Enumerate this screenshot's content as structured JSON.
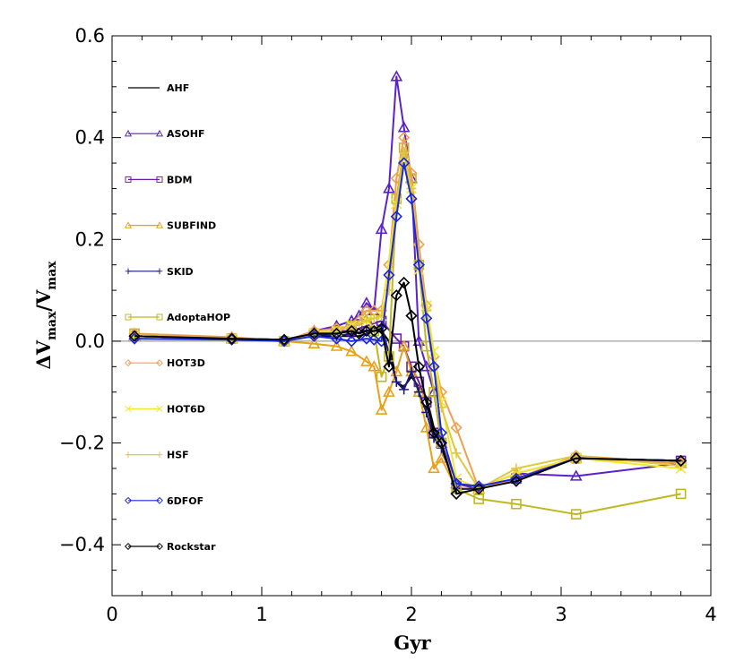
{
  "chart_data": {
    "type": "line",
    "xlabel": "Gyr",
    "ylabel": {
      "delta": "ΔV",
      "sub1": "max",
      "slash": "/V",
      "sub2": "max"
    },
    "xlim": [
      0,
      4
    ],
    "ylim": [
      -0.5,
      0.6
    ],
    "xticks": [
      0,
      1,
      2,
      3,
      4
    ],
    "yticks": [
      -0.4,
      -0.2,
      0.0,
      0.2,
      0.4,
      0.6
    ],
    "xtick_labels": [
      "0",
      "1",
      "2",
      "3",
      "4"
    ],
    "ytick_labels": [
      "−0.4",
      "−0.2",
      "0.0",
      "0.2",
      "0.4",
      "0.6"
    ],
    "reference_line_y": 0,
    "grid": false,
    "legend_position": "left",
    "series": [
      {
        "name": "AHF",
        "color": "#000000",
        "marker": "none",
        "x": [
          0.15,
          0.8,
          1.15,
          1.35,
          1.5,
          1.6,
          1.65,
          1.7,
          1.75,
          1.8,
          1.85,
          1.9,
          1.95,
          2.0,
          2.05,
          2.1,
          2.15,
          2.2,
          2.3,
          2.45,
          2.7,
          3.1,
          3.8
        ],
        "y": [
          0.01,
          0.005,
          0.003,
          0.01,
          0.01,
          0.01,
          0.01,
          0.015,
          0.02,
          0.02,
          0.0,
          -0.08,
          -0.09,
          -0.07,
          -0.09,
          -0.11,
          -0.17,
          -0.2,
          -0.29,
          -0.29,
          -0.27,
          -0.23,
          -0.235
        ]
      },
      {
        "name": "ASOHF",
        "color": "#5a22c8",
        "marker": "triangle",
        "x": [
          0.15,
          0.8,
          1.15,
          1.35,
          1.5,
          1.6,
          1.65,
          1.7,
          1.75,
          1.8,
          1.85,
          1.9,
          1.95,
          2.0,
          2.05,
          2.1,
          2.15,
          2.2,
          2.3,
          2.45,
          2.7,
          3.1,
          3.8
        ],
        "y": [
          0.01,
          0.005,
          0.0,
          0.02,
          0.03,
          0.04,
          0.05,
          0.075,
          0.06,
          0.22,
          0.3,
          0.52,
          0.42,
          0.32,
          0.0,
          -0.05,
          -0.1,
          -0.2,
          -0.28,
          -0.29,
          -0.26,
          -0.265,
          -0.24
        ]
      },
      {
        "name": "BDM",
        "color": "#6a1fa8",
        "marker": "square",
        "x": [
          0.15,
          0.8,
          1.15,
          1.35,
          1.5,
          1.6,
          1.7,
          1.8,
          1.9,
          1.95,
          2.0,
          2.05,
          2.1,
          2.15,
          2.2,
          2.3,
          2.45,
          2.7,
          3.1,
          3.8
        ],
        "y": [
          0.01,
          0.005,
          0.0,
          0.015,
          0.02,
          0.02,
          0.03,
          0.04,
          0.005,
          -0.01,
          -0.05,
          -0.08,
          -0.12,
          -0.18,
          -0.2,
          -0.28,
          -0.29,
          -0.27,
          -0.23,
          -0.235
        ]
      },
      {
        "name": "SUBFIND",
        "color": "#e8a018",
        "marker": "triangle",
        "x": [
          0.15,
          0.8,
          1.15,
          1.35,
          1.5,
          1.6,
          1.7,
          1.75,
          1.8,
          1.85,
          1.9,
          1.95,
          2.0,
          2.05,
          2.1,
          2.15,
          2.2,
          2.3,
          2.45,
          2.7,
          3.1,
          3.8
        ],
        "y": [
          0.01,
          0.005,
          0.0,
          -0.005,
          -0.01,
          -0.02,
          -0.04,
          -0.05,
          -0.135,
          -0.1,
          -0.06,
          -0.01,
          -0.06,
          -0.1,
          -0.17,
          -0.25,
          -0.23,
          -0.29,
          -0.29,
          -0.26,
          -0.23,
          -0.24
        ]
      },
      {
        "name": "SKID",
        "color": "#1a1a7a",
        "marker": "plus",
        "x": [
          0.15,
          0.8,
          1.15,
          1.35,
          1.5,
          1.6,
          1.7,
          1.8,
          1.9,
          1.95,
          2.0,
          2.05,
          2.1,
          2.15,
          2.2,
          2.3,
          2.45,
          2.7,
          3.1,
          3.8
        ],
        "y": [
          0.01,
          0.005,
          0.003,
          0.015,
          0.01,
          0.015,
          0.02,
          0.03,
          -0.08,
          -0.095,
          -0.06,
          -0.1,
          -0.14,
          -0.19,
          -0.21,
          -0.29,
          -0.29,
          -0.27,
          -0.23,
          -0.235
        ]
      },
      {
        "name": "AdoptaHOP",
        "color": "#c0b820",
        "marker": "square",
        "x": [
          0.15,
          0.8,
          1.15,
          1.35,
          1.5,
          1.6,
          1.7,
          1.75,
          1.8,
          1.85,
          1.9,
          1.95,
          2.0,
          2.05,
          2.1,
          2.15,
          2.2,
          2.3,
          2.45,
          2.7,
          3.1,
          3.8
        ],
        "y": [
          0.015,
          0.005,
          0.0,
          0.015,
          0.02,
          0.03,
          0.05,
          0.02,
          -0.07,
          -0.03,
          0.28,
          0.38,
          0.32,
          0.15,
          -0.01,
          -0.1,
          -0.2,
          -0.29,
          -0.31,
          -0.32,
          -0.34,
          -0.3
        ]
      },
      {
        "name": "HOT3D",
        "color": "#f0a050",
        "marker": "diamond",
        "x": [
          0.15,
          0.8,
          1.15,
          1.35,
          1.5,
          1.6,
          1.65,
          1.7,
          1.75,
          1.8,
          1.85,
          1.9,
          1.95,
          2.0,
          2.05,
          2.1,
          2.15,
          2.2,
          2.3,
          2.45,
          2.7,
          3.1,
          3.8
        ],
        "y": [
          0.015,
          0.008,
          0.0,
          0.02,
          0.025,
          0.03,
          0.04,
          0.06,
          0.06,
          0.06,
          0.15,
          0.32,
          0.4,
          0.33,
          0.19,
          0.07,
          -0.03,
          -0.1,
          -0.17,
          -0.29,
          -0.27,
          -0.225,
          -0.24
        ]
      },
      {
        "name": "HOT6D",
        "color": "#f0e830",
        "marker": "cross",
        "x": [
          0.15,
          0.8,
          1.15,
          1.35,
          1.5,
          1.6,
          1.7,
          1.8,
          1.9,
          1.95,
          2.0,
          2.05,
          2.1,
          2.15,
          2.2,
          2.3,
          2.45,
          2.7,
          3.1,
          3.8
        ],
        "y": [
          0.01,
          0.005,
          0.0,
          0.015,
          0.02,
          0.03,
          0.04,
          0.05,
          0.27,
          0.35,
          0.3,
          0.14,
          0.07,
          -0.02,
          -0.12,
          -0.27,
          -0.29,
          -0.26,
          -0.23,
          -0.25
        ]
      },
      {
        "name": "HSF",
        "color": "#e0c840",
        "marker": "plus",
        "x": [
          0.15,
          0.8,
          1.15,
          1.35,
          1.5,
          1.6,
          1.7,
          1.75,
          1.8,
          1.85,
          1.9,
          1.95,
          2.0,
          2.05,
          2.1,
          2.15,
          2.2,
          2.3,
          2.45,
          2.7,
          3.1,
          3.8
        ],
        "y": [
          0.01,
          0.005,
          0.0,
          0.015,
          0.02,
          0.03,
          0.04,
          0.045,
          0.05,
          0.1,
          0.27,
          0.37,
          0.3,
          0.15,
          0.06,
          -0.05,
          -0.13,
          -0.22,
          -0.29,
          -0.25,
          -0.225,
          -0.245
        ]
      },
      {
        "name": "6DFOF",
        "color": "#1a28e0",
        "marker": "diamond",
        "x": [
          0.15,
          0.8,
          1.15,
          1.35,
          1.5,
          1.6,
          1.7,
          1.75,
          1.8,
          1.85,
          1.9,
          1.95,
          2.0,
          2.05,
          2.1,
          2.15,
          2.2,
          2.3,
          2.45,
          2.7,
          3.1,
          3.8
        ],
        "y": [
          0.005,
          0.003,
          0.0,
          0.01,
          0.005,
          0.0,
          0.005,
          0.003,
          0.0,
          0.13,
          0.245,
          0.35,
          0.28,
          0.15,
          0.045,
          -0.05,
          -0.18,
          -0.28,
          -0.285,
          -0.27,
          -0.23,
          -0.235
        ]
      },
      {
        "name": "Rockstar",
        "color": "#000000",
        "marker": "diamond",
        "x": [
          0.15,
          0.8,
          1.15,
          1.35,
          1.5,
          1.6,
          1.65,
          1.7,
          1.75,
          1.8,
          1.85,
          1.9,
          1.95,
          2.0,
          2.05,
          2.1,
          2.15,
          2.2,
          2.3,
          2.45,
          2.7,
          3.1,
          3.8
        ],
        "y": [
          0.01,
          0.005,
          0.003,
          0.015,
          0.015,
          0.02,
          0.015,
          0.02,
          0.02,
          0.025,
          -0.05,
          0.09,
          0.115,
          0.05,
          -0.05,
          -0.12,
          -0.18,
          -0.2,
          -0.3,
          -0.29,
          -0.275,
          -0.23,
          -0.235
        ]
      }
    ]
  }
}
